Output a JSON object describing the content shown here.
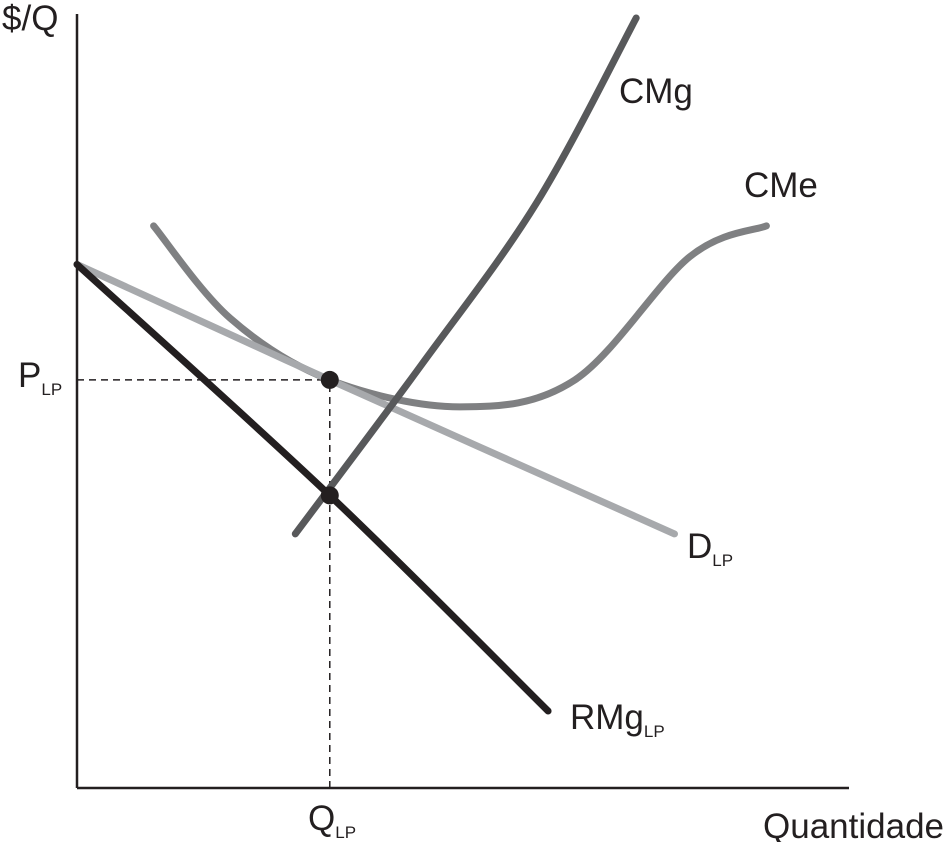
{
  "chart_data": {
    "type": "line",
    "title": "",
    "ylabel": "$/Q",
    "xlabel": "Quantidade",
    "xlim": [
      0,
      10
    ],
    "ylim": [
      0,
      10
    ],
    "grid": false,
    "legend": "none",
    "ticks": {
      "x": [
        {
          "value": 3.3,
          "label": "Q",
          "sub": "LP"
        }
      ],
      "y": [
        {
          "value": 5.3,
          "label": "P",
          "sub": "LP"
        }
      ]
    },
    "series": [
      {
        "name": "CMg",
        "color": "#58595b",
        "points": [
          [
            2.85,
            3.3
          ],
          [
            4.5,
            5.5
          ],
          [
            6.0,
            7.6
          ],
          [
            7.3,
            10.0
          ]
        ]
      },
      {
        "name": "CMe",
        "color": "#7f8082",
        "points": [
          [
            1.0,
            7.3
          ],
          [
            2.0,
            6.1
          ],
          [
            3.3,
            5.3
          ],
          [
            5.0,
            4.95
          ],
          [
            6.5,
            5.3
          ],
          [
            8.0,
            6.9
          ],
          [
            9.0,
            7.3
          ]
        ]
      },
      {
        "name": "D",
        "sub": "LP",
        "color": "#a7a9ac",
        "points": [
          [
            0.0,
            6.8
          ],
          [
            3.3,
            5.3
          ],
          [
            7.8,
            3.3
          ]
        ]
      },
      {
        "name": "RMg",
        "sub": "LP",
        "color": "#231f20",
        "points": [
          [
            0.0,
            6.8
          ],
          [
            3.3,
            3.8
          ],
          [
            6.15,
            1.0
          ]
        ]
      }
    ],
    "markers": [
      {
        "x": 3.3,
        "y": 5.3
      },
      {
        "x": 3.3,
        "y": 3.8
      }
    ],
    "guides": [
      {
        "from": [
          0.0,
          5.3
        ],
        "to": [
          3.3,
          5.3
        ]
      },
      {
        "from": [
          3.3,
          0.0
        ],
        "to": [
          3.3,
          5.3
        ]
      }
    ]
  }
}
